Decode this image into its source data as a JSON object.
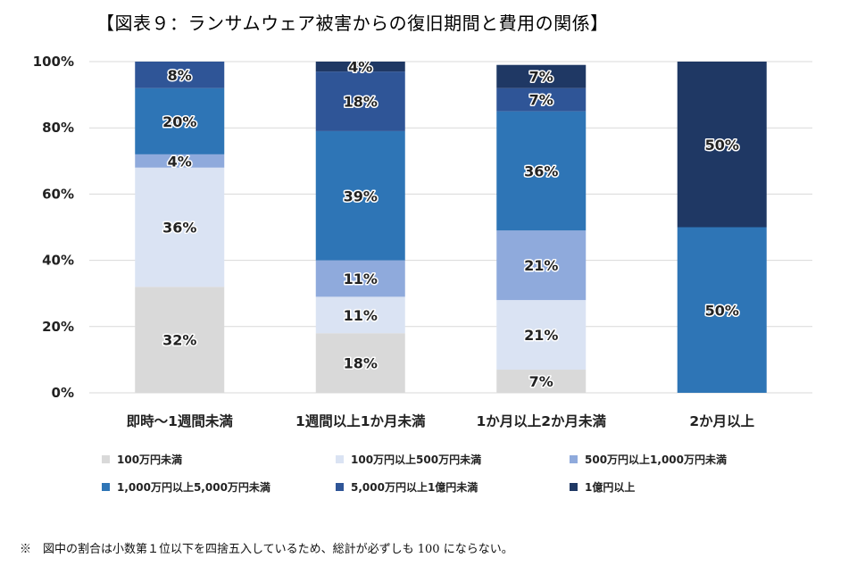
{
  "title": "【図表９：ランサムウェア被害からの復旧期間と費用の関係】",
  "note": "※　図中の割合は小数第１位以下を四捨五入しているため、総計が必ずしも 100 にならない。",
  "chart_data": {
    "type": "bar",
    "stacked": true,
    "categories": [
      "即時～1週間未満",
      "1週間以上1か月未満",
      "1か月以上2か月未満",
      "2か月以上"
    ],
    "y_ticks": [
      "0%",
      "20%",
      "40%",
      "60%",
      "80%",
      "100%"
    ],
    "ylim": [
      0,
      100
    ],
    "grid": true,
    "legend_position": "bottom",
    "series": [
      {
        "name": "100万円未満",
        "color": "#d9d9d9",
        "values": [
          32,
          18,
          7,
          0
        ],
        "labels": [
          "32%",
          "18%",
          "7%",
          ""
        ]
      },
      {
        "name": "100万円以上500万円未満",
        "color": "#dae3f3",
        "values": [
          36,
          11,
          21,
          0
        ],
        "labels": [
          "36%",
          "11%",
          "21%",
          ""
        ]
      },
      {
        "name": "500万円以上1,000万円未満",
        "color": "#8faadc",
        "values": [
          4,
          11,
          21,
          0
        ],
        "labels": [
          "4%",
          "11%",
          "21%",
          ""
        ]
      },
      {
        "name": "1,000万円以上5,000万円未満",
        "color": "#2e75b6",
        "values": [
          20,
          39,
          36,
          50
        ],
        "labels": [
          "20%",
          "39%",
          "36%",
          "50%"
        ]
      },
      {
        "name": "5,000万円以上1億円未満",
        "color": "#2f5597",
        "values": [
          8,
          18,
          7,
          0
        ],
        "labels": [
          "8%",
          "18%",
          "7%",
          ""
        ]
      },
      {
        "name": "1億円以上",
        "color": "#1f3864",
        "values": [
          0,
          4,
          7,
          50
        ],
        "labels": [
          "",
          "4%",
          "7%",
          "50%"
        ]
      }
    ]
  }
}
